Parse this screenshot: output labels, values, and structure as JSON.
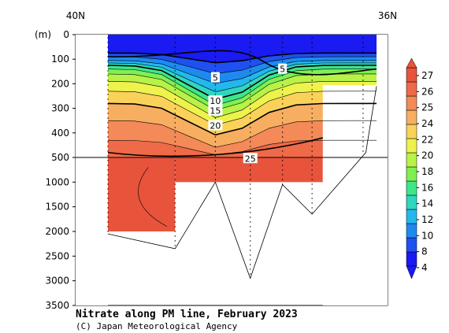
{
  "colors": {
    "background": "#ffffff",
    "frame": "#000000",
    "palette": [
      "#1a1af2",
      "#1f50f0",
      "#1e8af0",
      "#22b8ee",
      "#2fd6c0",
      "#3ee68a",
      "#7ef052",
      "#b8f248",
      "#eef24c",
      "#fad25a",
      "#f8ae60",
      "#f38a58",
      "#ee6a48",
      "#e8533c"
    ]
  },
  "chart_data": {
    "type": "heatmap",
    "title": "Nitrate along PM line, February 2023",
    "credit": "(C) Japan Meteorological Agency",
    "x_axis": {
      "left_label": "40N",
      "right_label": "36N",
      "range": [
        "40N",
        "36N"
      ]
    },
    "y_axis": {
      "unit_label": "(m)",
      "upper_ticks": [
        "0",
        "100",
        "200",
        "300",
        "400",
        "500"
      ],
      "lower_ticks": [
        "1000",
        "1500",
        "2000",
        "2500",
        "3000",
        "3500"
      ],
      "upper_range": [
        0,
        500
      ],
      "lower_range": [
        500,
        3500
      ],
      "inverted": true
    },
    "colorbar": {
      "levels": [
        4,
        6,
        8,
        10,
        12,
        14,
        16,
        18,
        20,
        22,
        24,
        25,
        26,
        27,
        28
      ],
      "tick_labels": [
        "27",
        "26",
        "25",
        "24",
        "22",
        "20",
        "18",
        "16",
        "14",
        "12",
        "10",
        "8",
        "4"
      ]
    },
    "contour_labels": [
      {
        "text": "5",
        "x_frac": 0.4,
        "depth": 175
      },
      {
        "text": "5",
        "x_frac": 0.65,
        "depth": 140
      },
      {
        "text": "10",
        "x_frac": 0.4,
        "depth": 270
      },
      {
        "text": "15",
        "x_frac": 0.4,
        "depth": 310
      },
      {
        "text": "20",
        "x_frac": 0.4,
        "depth": 370
      },
      {
        "text": "25",
        "x_frac": 0.53,
        "depth": 520
      }
    ],
    "stations_x_frac": [
      0.0,
      0.25,
      0.4,
      0.53,
      0.65,
      0.76,
      0.95
    ],
    "grid": false,
    "legend": "right"
  }
}
